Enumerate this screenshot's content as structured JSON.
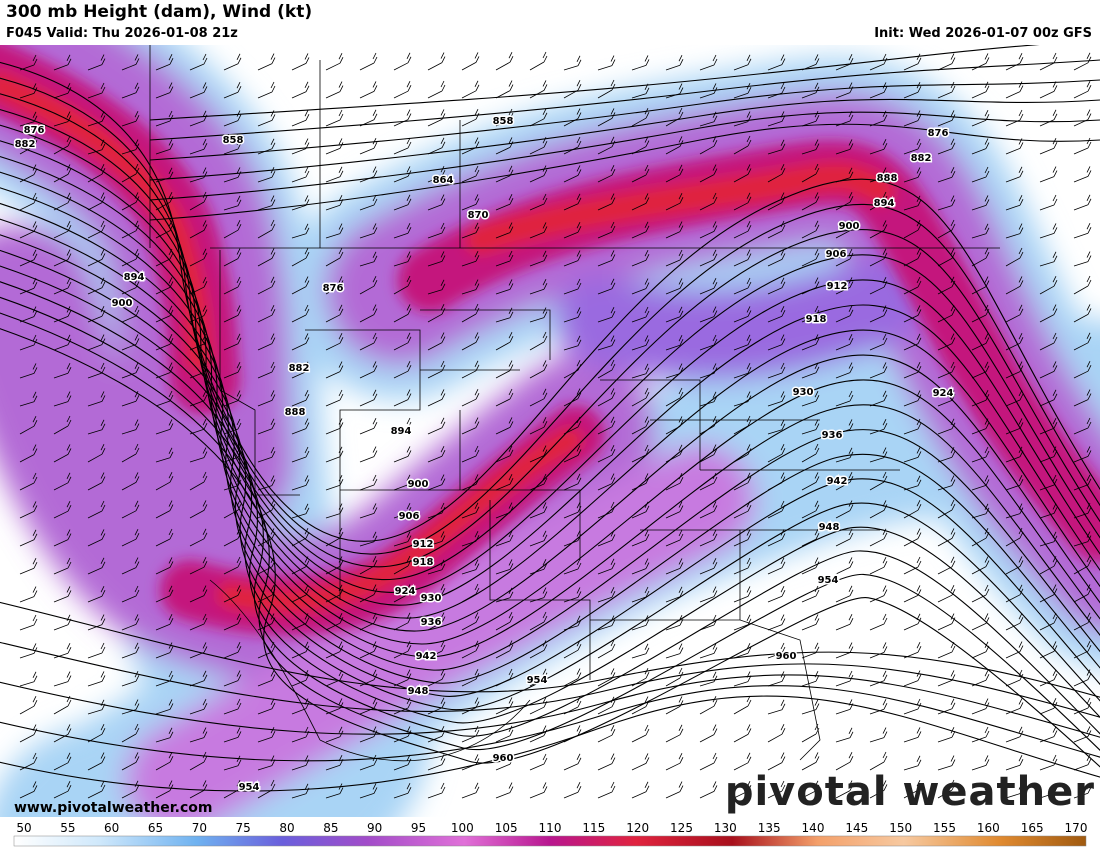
{
  "header": {
    "title": "300 mb Height (dam), Wind (kt)",
    "valid": "F045 Valid: Thu 2026-01-08 21z",
    "init": "Init: Wed 2026-01-07 00z GFS"
  },
  "map": {
    "contour_labels": [
      "876",
      "882",
      "858",
      "858",
      "864",
      "870",
      "876",
      "882",
      "888",
      "894",
      "900",
      "894",
      "900",
      "906",
      "912",
      "918",
      "924",
      "930",
      "936",
      "942",
      "948",
      "954",
      "954",
      "960",
      "876",
      "882",
      "888",
      "894",
      "900",
      "906",
      "912",
      "918",
      "924",
      "930",
      "936",
      "942",
      "948",
      "954",
      "960"
    ]
  },
  "footer": {
    "url": "www.pivotalweather.com",
    "logo": "pivotal weather"
  },
  "colorbar": {
    "ticks": [
      "50",
      "55",
      "60",
      "65",
      "70",
      "75",
      "80",
      "85",
      "90",
      "95",
      "100",
      "105",
      "110",
      "115",
      "120",
      "125",
      "130",
      "135",
      "140",
      "145",
      "150",
      "155",
      "160",
      "165",
      "170"
    ]
  }
}
